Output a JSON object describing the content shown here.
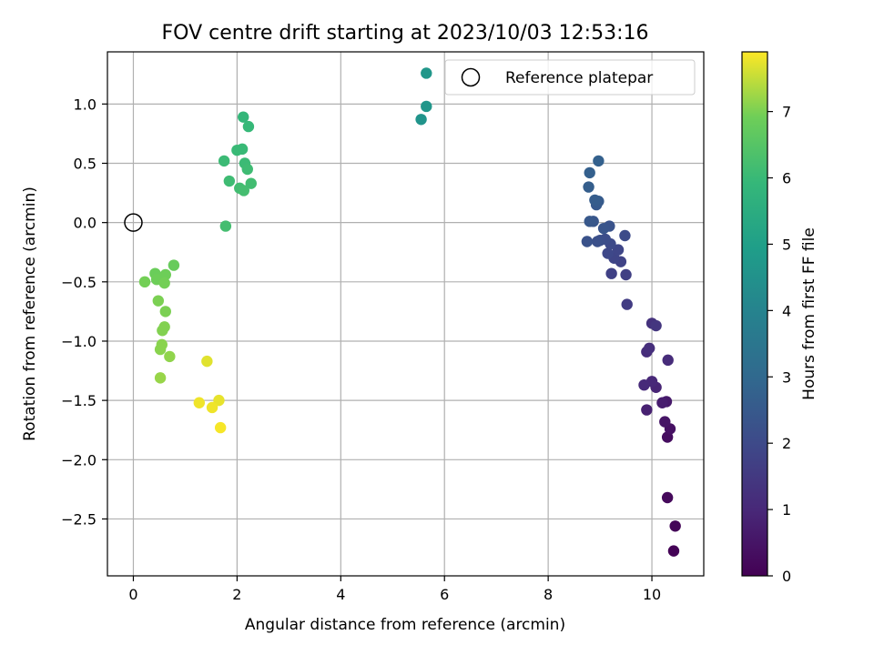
{
  "chart_data": {
    "type": "scatter",
    "title": "FOV centre drift starting at 2023/10/03 12:53:16",
    "xlabel": "Angular distance from reference (arcmin)",
    "ylabel": "Rotation from reference (arcmin)",
    "xlim": [
      -0.5,
      11.0
    ],
    "ylim": [
      -2.98,
      1.44
    ],
    "xticks": [
      0,
      2,
      4,
      6,
      8,
      10
    ],
    "yticks": [
      -2.5,
      -2.0,
      -1.5,
      -1.0,
      -0.5,
      0.0,
      0.5,
      1.0
    ],
    "xtick_labels": [
      "0",
      "2",
      "4",
      "6",
      "8",
      "10"
    ],
    "ytick_labels": [
      "−2.5",
      "−2.0",
      "−1.5",
      "−1.0",
      "−0.5",
      "0.0",
      "0.5",
      "1.0"
    ],
    "grid": true,
    "colormap": "viridis",
    "colorbar": {
      "label": "Hours from first FF file",
      "range": [
        0,
        7.9
      ],
      "ticks": [
        0,
        1,
        2,
        3,
        4,
        5,
        6,
        7
      ],
      "tick_labels": [
        "0",
        "1",
        "2",
        "3",
        "4",
        "5",
        "6",
        "7"
      ]
    },
    "legend": {
      "label": "Reference platepar",
      "position": "top-right"
    },
    "reference_point": {
      "x": 0,
      "y": 0
    },
    "points": [
      {
        "x": 10.42,
        "y": -2.77,
        "h": 0.05
      },
      {
        "x": 10.45,
        "y": -2.56,
        "h": 0.12
      },
      {
        "x": 10.3,
        "y": -2.32,
        "h": 0.2
      },
      {
        "x": 10.3,
        "y": -1.81,
        "h": 0.3
      },
      {
        "x": 10.35,
        "y": -1.74,
        "h": 0.4
      },
      {
        "x": 10.25,
        "y": -1.68,
        "h": 0.5
      },
      {
        "x": 10.28,
        "y": -1.51,
        "h": 0.6
      },
      {
        "x": 10.2,
        "y": -1.52,
        "h": 0.7
      },
      {
        "x": 9.9,
        "y": -1.58,
        "h": 0.8
      },
      {
        "x": 10.08,
        "y": -1.39,
        "h": 0.9
      },
      {
        "x": 10.0,
        "y": -1.34,
        "h": 1.0
      },
      {
        "x": 9.85,
        "y": -1.37,
        "h": 1.05
      },
      {
        "x": 10.31,
        "y": -1.16,
        "h": 1.1
      },
      {
        "x": 9.9,
        "y": -1.09,
        "h": 1.15
      },
      {
        "x": 9.95,
        "y": -1.06,
        "h": 1.2
      },
      {
        "x": 10.0,
        "y": -0.85,
        "h": 1.3
      },
      {
        "x": 10.08,
        "y": -0.87,
        "h": 1.4
      },
      {
        "x": 9.52,
        "y": -0.69,
        "h": 1.6
      },
      {
        "x": 9.5,
        "y": -0.44,
        "h": 1.7
      },
      {
        "x": 9.22,
        "y": -0.43,
        "h": 1.75
      },
      {
        "x": 9.4,
        "y": -0.33,
        "h": 1.8
      },
      {
        "x": 9.27,
        "y": -0.3,
        "h": 1.85
      },
      {
        "x": 9.35,
        "y": -0.23,
        "h": 1.9
      },
      {
        "x": 9.15,
        "y": -0.26,
        "h": 1.95
      },
      {
        "x": 9.2,
        "y": -0.18,
        "h": 2.0
      },
      {
        "x": 9.48,
        "y": -0.11,
        "h": 2.05
      },
      {
        "x": 9.1,
        "y": -0.14,
        "h": 2.1
      },
      {
        "x": 9.0,
        "y": -0.15,
        "h": 2.15
      },
      {
        "x": 8.95,
        "y": -0.16,
        "h": 2.2
      },
      {
        "x": 8.75,
        "y": -0.16,
        "h": 2.25
      },
      {
        "x": 9.18,
        "y": -0.03,
        "h": 2.3
      },
      {
        "x": 9.07,
        "y": -0.05,
        "h": 2.35
      },
      {
        "x": 8.87,
        "y": 0.01,
        "h": 2.4
      },
      {
        "x": 8.8,
        "y": 0.01,
        "h": 2.45
      },
      {
        "x": 8.93,
        "y": 0.15,
        "h": 2.5
      },
      {
        "x": 8.97,
        "y": 0.18,
        "h": 2.55
      },
      {
        "x": 8.9,
        "y": 0.19,
        "h": 2.6
      },
      {
        "x": 8.78,
        "y": 0.3,
        "h": 2.65
      },
      {
        "x": 8.8,
        "y": 0.42,
        "h": 2.7
      },
      {
        "x": 8.97,
        "y": 0.52,
        "h": 2.75
      },
      {
        "x": 5.55,
        "y": 0.87,
        "h": 4.6
      },
      {
        "x": 5.65,
        "y": 0.98,
        "h": 4.65
      },
      {
        "x": 5.65,
        "y": 1.26,
        "h": 4.7
      },
      {
        "x": 2.12,
        "y": 0.89,
        "h": 5.9
      },
      {
        "x": 2.22,
        "y": 0.81,
        "h": 5.95
      },
      {
        "x": 2.1,
        "y": 0.62,
        "h": 6.0
      },
      {
        "x": 2.0,
        "y": 0.61,
        "h": 6.0
      },
      {
        "x": 1.75,
        "y": 0.52,
        "h": 6.05
      },
      {
        "x": 2.15,
        "y": 0.5,
        "h": 6.05
      },
      {
        "x": 2.2,
        "y": 0.45,
        "h": 6.1
      },
      {
        "x": 1.85,
        "y": 0.35,
        "h": 6.1
      },
      {
        "x": 2.27,
        "y": 0.33,
        "h": 6.15
      },
      {
        "x": 2.05,
        "y": 0.29,
        "h": 6.15
      },
      {
        "x": 2.13,
        "y": 0.27,
        "h": 6.2
      },
      {
        "x": 1.78,
        "y": -0.03,
        "h": 6.2
      },
      {
        "x": 0.78,
        "y": -0.36,
        "h": 6.8
      },
      {
        "x": 0.42,
        "y": -0.43,
        "h": 6.85
      },
      {
        "x": 0.62,
        "y": -0.44,
        "h": 6.9
      },
      {
        "x": 0.45,
        "y": -0.48,
        "h": 6.9
      },
      {
        "x": 0.22,
        "y": -0.5,
        "h": 6.95
      },
      {
        "x": 0.6,
        "y": -0.51,
        "h": 6.95
      },
      {
        "x": 0.48,
        "y": -0.66,
        "h": 7.0
      },
      {
        "x": 0.62,
        "y": -0.75,
        "h": 7.0
      },
      {
        "x": 0.6,
        "y": -0.88,
        "h": 7.05
      },
      {
        "x": 0.56,
        "y": -0.91,
        "h": 7.05
      },
      {
        "x": 0.55,
        "y": -1.03,
        "h": 7.1
      },
      {
        "x": 0.52,
        "y": -1.07,
        "h": 7.1
      },
      {
        "x": 0.7,
        "y": -1.13,
        "h": 7.15
      },
      {
        "x": 0.52,
        "y": -1.31,
        "h": 7.2
      },
      {
        "x": 1.42,
        "y": -1.17,
        "h": 7.7
      },
      {
        "x": 1.65,
        "y": -1.5,
        "h": 7.75
      },
      {
        "x": 1.27,
        "y": -1.52,
        "h": 7.8
      },
      {
        "x": 1.52,
        "y": -1.56,
        "h": 7.8
      },
      {
        "x": 1.68,
        "y": -1.73,
        "h": 7.85
      }
    ]
  }
}
